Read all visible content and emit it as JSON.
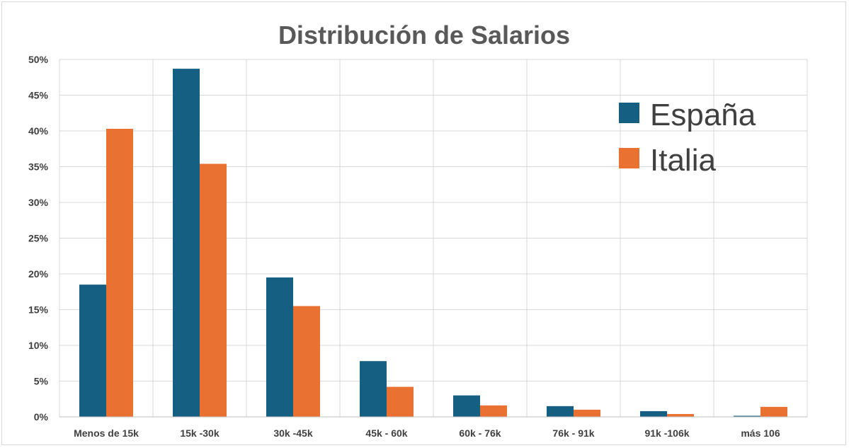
{
  "chart_data": {
    "type": "bar",
    "title": "Distribución de Salarios",
    "categories": [
      "Menos de 15k",
      "15k -30k",
      "30k -45k",
      "45k - 60k",
      "60k - 76k",
      "76k - 91k",
      "91k -106k",
      "más 106"
    ],
    "series": [
      {
        "name": "España",
        "color": "#156082",
        "values": [
          18.5,
          48.7,
          19.5,
          7.8,
          3.0,
          1.5,
          0.8,
          0.15
        ]
      },
      {
        "name": "Italia",
        "color": "#E97132",
        "values": [
          40.3,
          35.4,
          15.5,
          4.2,
          1.6,
          1.0,
          0.4,
          1.4
        ]
      }
    ],
    "y_ticks": [
      "0%",
      "5%",
      "10%",
      "15%",
      "20%",
      "25%",
      "30%",
      "35%",
      "40%",
      "45%",
      "50%"
    ],
    "ylim": [
      0,
      50
    ],
    "y_unit": "%",
    "grid": true,
    "legend_position": "top-right"
  }
}
